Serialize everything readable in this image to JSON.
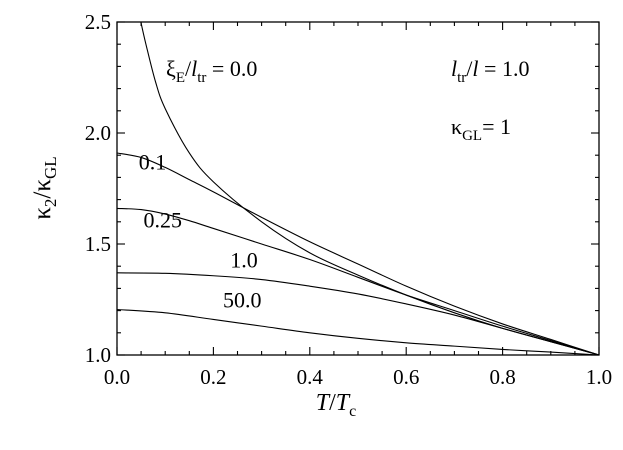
{
  "chart_data": {
    "type": "line",
    "xlabel": {
      "main": "T",
      "sep": "/",
      "base": "T",
      "sub": "c"
    },
    "ylabel": {
      "base1": "κ",
      "sub1": "2",
      "sep": "/",
      "base2": "κ",
      "sub2": "GL"
    },
    "xlim": [
      0.0,
      1.0
    ],
    "ylim": [
      1.0,
      2.5
    ],
    "xticks": [
      "0.0",
      "0.2",
      "0.4",
      "0.6",
      "0.8",
      "1.0"
    ],
    "yticks": [
      "1.0",
      "1.5",
      "2.0",
      "2.5"
    ],
    "grid": false,
    "series": [
      {
        "name": "0.0",
        "x": [
          0.0495,
          0.06,
          0.08,
          0.1,
          0.15,
          0.2,
          0.3,
          0.4,
          0.5,
          0.6,
          0.7,
          0.8,
          0.9,
          1.0
        ],
        "y": [
          2.5,
          2.4,
          2.23,
          2.11,
          1.91,
          1.78,
          1.6,
          1.46,
          1.36,
          1.27,
          1.19,
          1.12,
          1.06,
          1.0
        ]
      },
      {
        "name": "0.1",
        "x": [
          0.0,
          0.05,
          0.1,
          0.15,
          0.2,
          0.3,
          0.4,
          0.5,
          0.6,
          0.7,
          0.8,
          0.9,
          1.0
        ],
        "y": [
          1.91,
          1.89,
          1.845,
          1.79,
          1.735,
          1.62,
          1.51,
          1.41,
          1.31,
          1.22,
          1.14,
          1.07,
          1.0
        ]
      },
      {
        "name": "0.25",
        "x": [
          0.0,
          0.05,
          0.1,
          0.15,
          0.2,
          0.3,
          0.4,
          0.5,
          0.6,
          0.7,
          0.8,
          0.9,
          1.0
        ],
        "y": [
          1.66,
          1.655,
          1.635,
          1.605,
          1.57,
          1.5,
          1.43,
          1.35,
          1.27,
          1.2,
          1.13,
          1.065,
          1.0
        ]
      },
      {
        "name": "1.0",
        "x": [
          0.0,
          0.1,
          0.2,
          0.3,
          0.4,
          0.5,
          0.6,
          0.7,
          0.8,
          0.9,
          1.0
        ],
        "y": [
          1.37,
          1.368,
          1.357,
          1.34,
          1.31,
          1.275,
          1.23,
          1.18,
          1.12,
          1.06,
          1.0
        ]
      },
      {
        "name": "50.0",
        "x": [
          0.0,
          0.1,
          0.2,
          0.3,
          0.4,
          0.5,
          0.6,
          0.7,
          0.8,
          0.9,
          1.0
        ],
        "y": [
          1.205,
          1.19,
          1.16,
          1.13,
          1.1,
          1.075,
          1.055,
          1.04,
          1.025,
          1.013,
          1.0
        ]
      }
    ],
    "annotations": {
      "xi_main": {
        "base": "ξ",
        "sub": "E",
        "sep": "/",
        "l": "l",
        "lsub": "tr",
        "value": " = 0.0"
      },
      "ltr": {
        "l": "l",
        "lsub": "tr",
        "rest": "/",
        "l2": "l",
        "value": " = 1.0"
      },
      "kappa": {
        "base": "κ",
        "sub": "GL",
        "value": "= 1"
      }
    }
  }
}
